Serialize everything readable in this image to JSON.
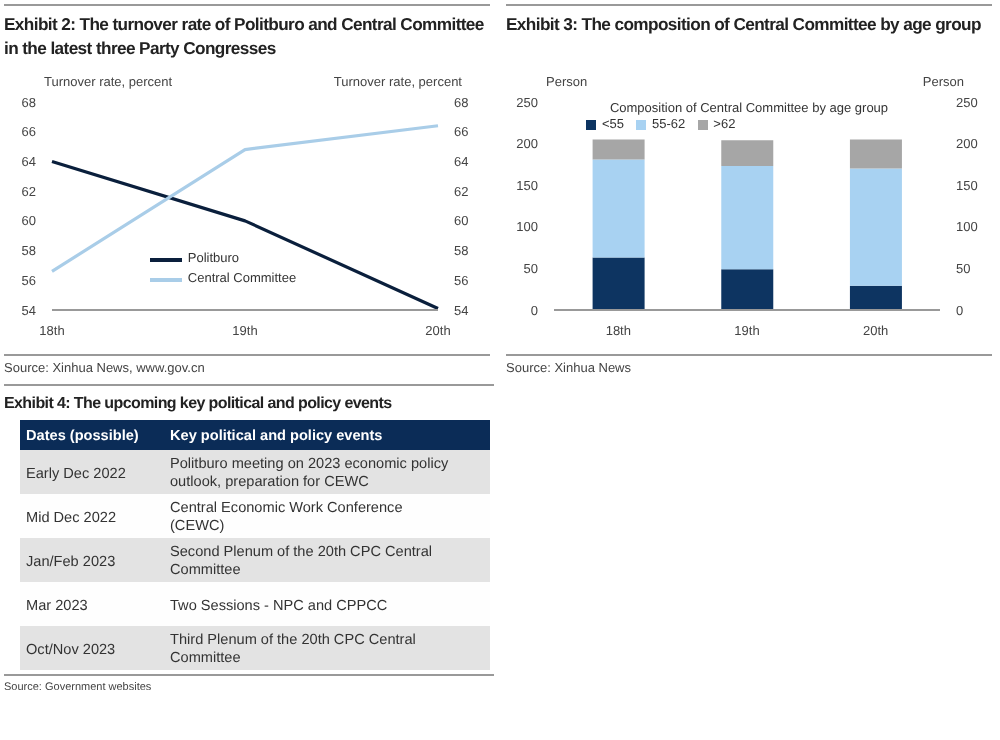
{
  "chart_data": [
    {
      "type": "line",
      "title": "Exhibit 2: The turnover rate of Politburo and Central Committee in the latest three Party Congresses",
      "ylabel": "Turnover rate, percent",
      "y2label": "Turnover rate, percent",
      "categories": [
        "18th",
        "19th",
        "20th"
      ],
      "series": [
        {
          "name": "Politburo",
          "color": "#0a1f3c",
          "values": [
            64,
            60,
            54.1
          ]
        },
        {
          "name": "Central Committee",
          "color": "#a9cde8",
          "values": [
            56.6,
            64.8,
            66.4
          ]
        }
      ],
      "ylim": [
        54,
        68
      ],
      "yticks": [
        54,
        56,
        58,
        60,
        62,
        64,
        66,
        68
      ],
      "y2lim": [
        54,
        68
      ],
      "y2ticks": [
        54,
        56,
        58,
        60,
        62,
        64,
        66,
        68
      ],
      "legend": "bottom",
      "marker": "none",
      "line_style": "solid",
      "annotations": [
        "Source: Xinhua News, www.gov.cn"
      ]
    },
    {
      "type": "bar",
      "title": "Exhibit 3: The composition of Central Committee by age group",
      "subtitle": "Composition of Central Committee by age group",
      "ylabel": "Person",
      "y2label": "Person",
      "categories": [
        "18th",
        "19th",
        "20th"
      ],
      "stacked": true,
      "series": [
        {
          "name": "<55",
          "color": "#0d3461",
          "values": [
            63,
            49,
            29
          ]
        },
        {
          "name": "55-62",
          "color": "#a8d2f2",
          "values": [
            118,
            124,
            141
          ]
        },
        {
          "name": ">62",
          "color": "#a6a6a6",
          "values": [
            24,
            31,
            35
          ]
        }
      ],
      "ylim": [
        0,
        250
      ],
      "yticks": [
        0,
        50,
        100,
        150,
        200,
        250
      ],
      "y2lim": [
        0,
        250
      ],
      "y2ticks": [
        0,
        50,
        100,
        150,
        200,
        250
      ],
      "legend": "top left",
      "annotations": [
        "Source: Xinhua News"
      ]
    },
    {
      "type": "other",
      "title": "Exhibit 4: The upcoming key political and policy events",
      "annotations": [
        "Dates (possible)",
        "Key political and policy events",
        "Early Dec 2022",
        "Politburo meeting on 2023 economic policy outlook, preparation for CEWC",
        "Mid Dec 2022",
        "Central Economic Work Conference (CEWC)",
        "Jan/Feb 2023",
        "Second Plenum of the 20th CPC Central Committee",
        "Mar 2023",
        "Two Sessions - NPC and CPPCC",
        "Oct/Nov 2023",
        "Third Plenum of the 20th CPC Central Committee",
        "Source: Government websites"
      ]
    }
  ]
}
